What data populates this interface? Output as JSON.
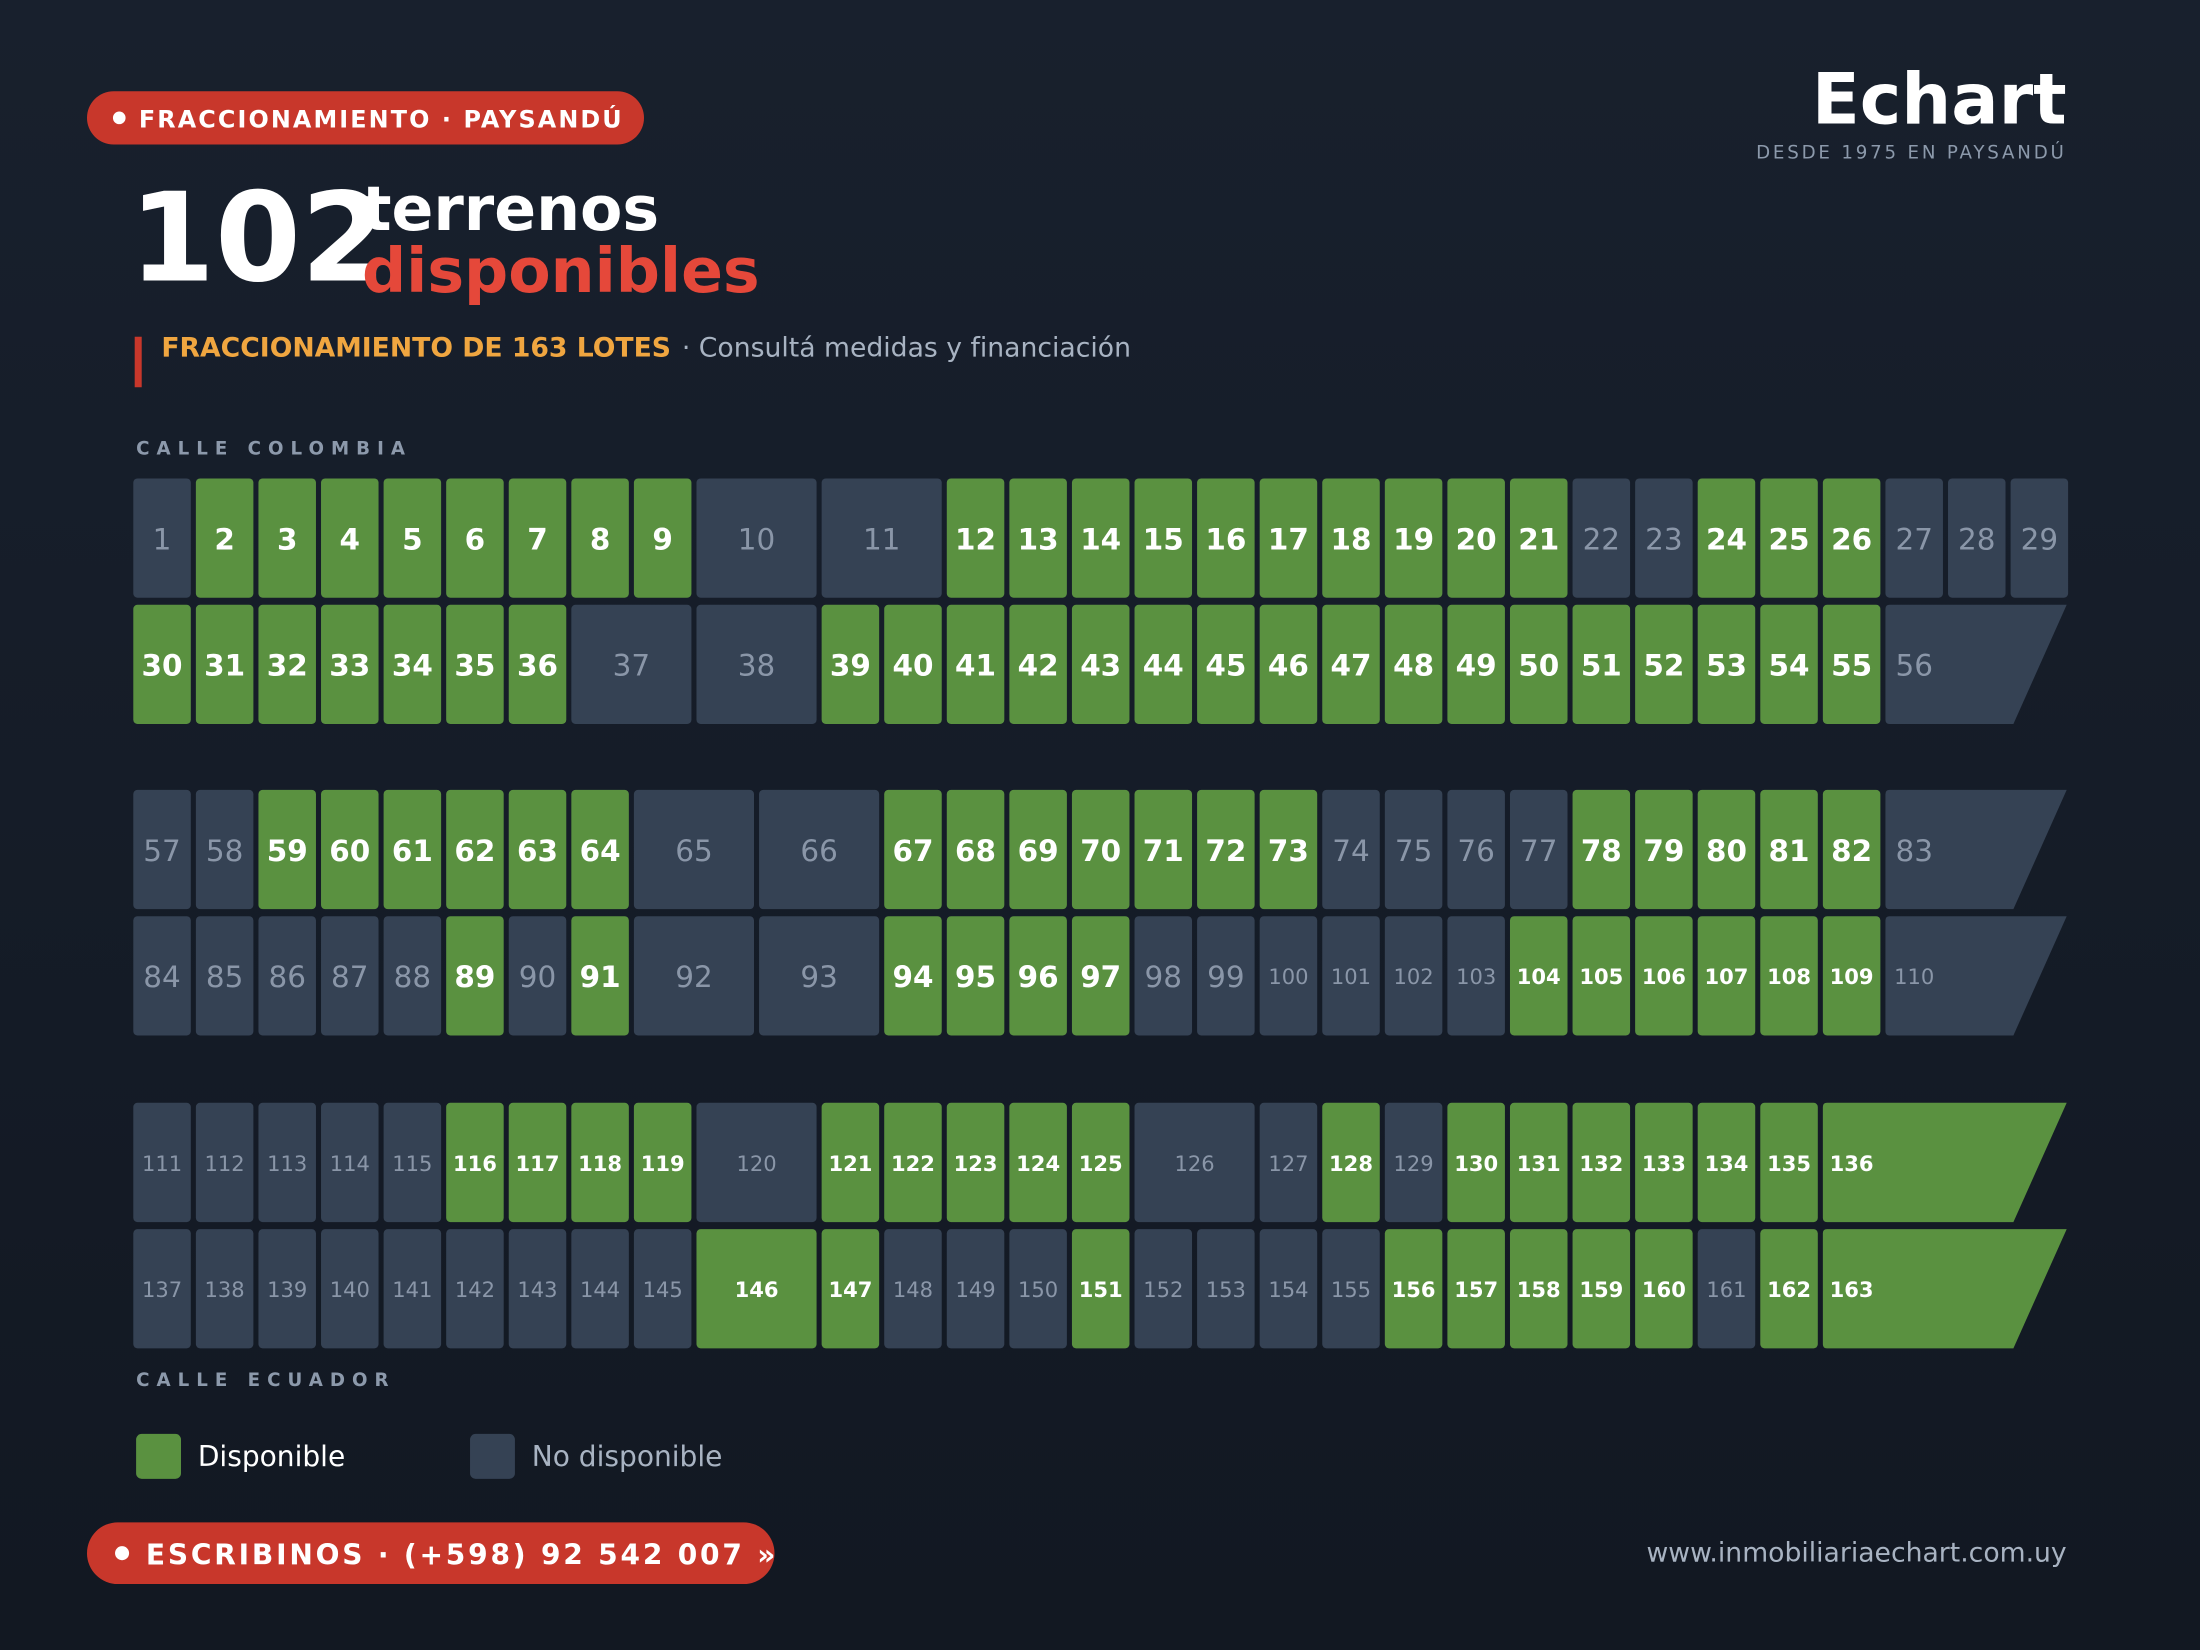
{
  "header": {
    "badge": "FRACCIONAMIENTO · PAYSANDÚ",
    "count": 102,
    "title_line1": "terrenos",
    "title_line2": "disponibles",
    "subtitle": "FRACCIONAMIENTO DE 163 LOTES",
    "subtitle_note": "· Consultá medidas y financiación",
    "brand": "Echart",
    "brand_tagline": "DESDE 1975 EN PAYSANDÚ"
  },
  "map": {
    "top_street": "CALLE COLOMBIA",
    "bottom_street": "CALLE ECUADOR",
    "available_color": "#5a9140",
    "unavailable_color": "#354254",
    "rows": [
      {
        "numbers": [
          1,
          2,
          3,
          4,
          5,
          6,
          7,
          8,
          9,
          10,
          11,
          12,
          13,
          14,
          15,
          16,
          17,
          18,
          19,
          20,
          21,
          22,
          23,
          24,
          25,
          26,
          27,
          28,
          29
        ],
        "available": [
          false,
          true,
          true,
          true,
          true,
          true,
          true,
          true,
          true,
          false,
          false,
          true,
          true,
          true,
          true,
          true,
          true,
          true,
          true,
          true,
          true,
          false,
          false,
          true,
          true,
          true,
          false,
          false,
          false
        ]
      },
      {
        "numbers": [
          30,
          31,
          32,
          33,
          34,
          35,
          36,
          37,
          38,
          39,
          40,
          41,
          42,
          43,
          44,
          45,
          46,
          47,
          48,
          49,
          50,
          51,
          52,
          53,
          54,
          55,
          56
        ],
        "available": [
          true,
          true,
          true,
          true,
          true,
          true,
          true,
          false,
          false,
          true,
          true,
          true,
          true,
          true,
          true,
          true,
          true,
          true,
          true,
          true,
          true,
          true,
          true,
          true,
          true,
          true,
          false
        ]
      },
      {
        "numbers": [
          57,
          58,
          59,
          60,
          61,
          62,
          63,
          64,
          65,
          66,
          67,
          68,
          69,
          70,
          71,
          72,
          73,
          74,
          75,
          76,
          77,
          78,
          79,
          80,
          81,
          82,
          83
        ],
        "available": [
          false,
          false,
          true,
          true,
          true,
          true,
          true,
          true,
          false,
          false,
          true,
          true,
          true,
          true,
          true,
          true,
          true,
          false,
          false,
          false,
          false,
          true,
          true,
          true,
          true,
          true,
          false
        ]
      },
      {
        "numbers": [
          84,
          85,
          86,
          87,
          88,
          89,
          90,
          91,
          92,
          93,
          94,
          95,
          96,
          97,
          98,
          99,
          100,
          101,
          102,
          103,
          104,
          105,
          106,
          107,
          108,
          109,
          110
        ],
        "available": [
          false,
          false,
          false,
          false,
          false,
          true,
          false,
          true,
          false,
          false,
          true,
          true,
          true,
          true,
          false,
          false,
          false,
          false,
          false,
          false,
          true,
          true,
          true,
          true,
          true,
          true,
          false
        ]
      },
      {
        "numbers": [
          111,
          112,
          113,
          114,
          115,
          116,
          117,
          118,
          119,
          120,
          121,
          122,
          123,
          124,
          125,
          126,
          127,
          128,
          129,
          130,
          131,
          132,
          133,
          134,
          135,
          136
        ],
        "available": [
          false,
          false,
          false,
          false,
          false,
          true,
          true,
          true,
          true,
          false,
          true,
          true,
          true,
          true,
          true,
          false,
          false,
          true,
          false,
          true,
          true,
          true,
          true,
          true,
          true,
          true
        ]
      },
      {
        "numbers": [
          137,
          138,
          139,
          140,
          141,
          142,
          143,
          144,
          145,
          146,
          147,
          148,
          149,
          150,
          151,
          152,
          153,
          154,
          155,
          156,
          157,
          158,
          159,
          160,
          161,
          162,
          163
        ],
        "available": [
          false,
          false,
          false,
          false,
          false,
          false,
          false,
          false,
          false,
          true,
          true,
          false,
          false,
          false,
          true,
          false,
          false,
          false,
          false,
          true,
          true,
          true,
          true,
          true,
          false,
          true,
          true
        ]
      }
    ]
  },
  "legend": {
    "available": "Disponible",
    "unavailable": "No disponible"
  },
  "footer": {
    "contact": "ESCRIBINOS · (+598) 92 542 007 »",
    "url": "www.inmobiliariaechart.com.uy"
  }
}
